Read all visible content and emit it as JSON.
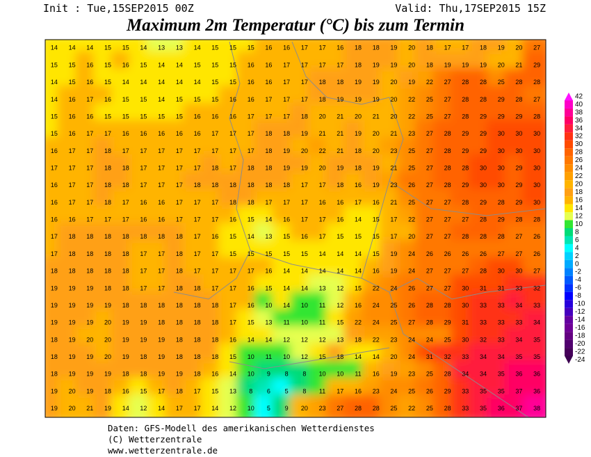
{
  "header": {
    "init": "Init : Tue,15SEP2015 00Z",
    "valid": "Valid: Thu,17SEP2015 15Z",
    "title": "Maximum 2m Temperatur (°C) bis zum Termin"
  },
  "map": {
    "grid": [
      [
        14,
        14,
        14,
        15,
        15,
        14,
        13,
        13,
        14,
        15,
        15,
        15,
        16,
        16,
        17,
        17,
        16,
        18,
        18,
        19,
        20,
        18,
        17,
        17,
        18,
        19,
        20,
        27
      ],
      [
        15,
        15,
        16,
        15,
        16,
        15,
        14,
        14,
        15,
        15,
        15,
        16,
        16,
        17,
        17,
        17,
        17,
        18,
        19,
        19,
        20,
        18,
        19,
        19,
        19,
        20,
        21,
        29
      ],
      [
        14,
        15,
        16,
        15,
        14,
        14,
        14,
        14,
        14,
        15,
        15,
        16,
        16,
        17,
        17,
        18,
        18,
        19,
        19,
        20,
        19,
        22,
        27,
        28,
        28,
        25,
        28,
        28
      ],
      [
        14,
        16,
        17,
        16,
        15,
        15,
        14,
        15,
        15,
        15,
        16,
        16,
        17,
        17,
        17,
        18,
        19,
        19,
        19,
        20,
        22,
        25,
        27,
        28,
        28,
        29,
        28,
        27
      ],
      [
        15,
        16,
        16,
        15,
        15,
        15,
        15,
        15,
        16,
        16,
        16,
        17,
        17,
        17,
        18,
        20,
        21,
        20,
        21,
        20,
        22,
        25,
        27,
        28,
        29,
        29,
        29,
        28
      ],
      [
        15,
        16,
        17,
        17,
        16,
        16,
        16,
        16,
        16,
        17,
        17,
        17,
        18,
        18,
        19,
        21,
        21,
        19,
        20,
        21,
        23,
        27,
        28,
        29,
        29,
        30,
        30,
        30
      ],
      [
        16,
        17,
        17,
        18,
        17,
        17,
        17,
        17,
        17,
        17,
        17,
        17,
        18,
        19,
        20,
        22,
        21,
        18,
        20,
        23,
        25,
        27,
        28,
        29,
        29,
        30,
        30,
        30
      ],
      [
        17,
        17,
        17,
        18,
        18,
        17,
        17,
        17,
        17,
        18,
        17,
        18,
        18,
        19,
        19,
        20,
        19,
        18,
        19,
        21,
        25,
        27,
        28,
        28,
        30,
        30,
        29,
        30
      ],
      [
        16,
        17,
        17,
        18,
        18,
        17,
        17,
        17,
        18,
        18,
        18,
        18,
        18,
        18,
        17,
        17,
        18,
        16,
        19,
        23,
        26,
        27,
        28,
        29,
        30,
        30,
        29,
        30
      ],
      [
        16,
        17,
        17,
        18,
        17,
        16,
        16,
        17,
        17,
        17,
        18,
        18,
        17,
        17,
        17,
        16,
        16,
        17,
        16,
        21,
        25,
        27,
        27,
        28,
        29,
        28,
        29,
        30
      ],
      [
        16,
        16,
        17,
        17,
        17,
        16,
        16,
        17,
        17,
        17,
        16,
        15,
        14,
        16,
        17,
        17,
        16,
        14,
        15,
        17,
        22,
        27,
        27,
        27,
        28,
        29,
        28,
        28
      ],
      [
        17,
        18,
        18,
        18,
        18,
        18,
        18,
        18,
        17,
        16,
        15,
        14,
        13,
        15,
        16,
        17,
        15,
        15,
        15,
        17,
        20,
        27,
        27,
        28,
        28,
        28,
        27,
        26
      ],
      [
        17,
        18,
        18,
        18,
        18,
        17,
        17,
        18,
        17,
        17,
        15,
        15,
        15,
        15,
        15,
        14,
        14,
        14,
        15,
        19,
        24,
        26,
        26,
        26,
        26,
        27,
        27,
        26
      ],
      [
        18,
        18,
        18,
        18,
        18,
        17,
        17,
        18,
        17,
        17,
        17,
        17,
        16,
        14,
        14,
        14,
        14,
        14,
        16,
        19,
        24,
        27,
        27,
        27,
        28,
        30,
        30,
        27
      ],
      [
        19,
        19,
        19,
        18,
        18,
        17,
        17,
        18,
        18,
        17,
        17,
        16,
        15,
        14,
        14,
        13,
        12,
        15,
        22,
        24,
        26,
        27,
        27,
        30,
        31,
        31,
        33,
        32
      ],
      [
        19,
        19,
        19,
        19,
        18,
        18,
        18,
        18,
        18,
        18,
        17,
        16,
        10,
        14,
        10,
        11,
        12,
        16,
        24,
        25,
        26,
        28,
        28,
        30,
        33,
        33,
        34,
        33
      ],
      [
        19,
        19,
        19,
        20,
        19,
        19,
        18,
        18,
        18,
        18,
        17,
        15,
        13,
        11,
        10,
        11,
        15,
        22,
        24,
        25,
        27,
        28,
        29,
        31,
        33,
        33,
        33,
        34
      ],
      [
        18,
        19,
        20,
        20,
        19,
        19,
        19,
        18,
        18,
        18,
        16,
        14,
        14,
        12,
        12,
        12,
        13,
        18,
        22,
        23,
        24,
        24,
        25,
        30,
        32,
        33,
        34,
        35
      ],
      [
        18,
        19,
        19,
        20,
        19,
        18,
        19,
        18,
        18,
        18,
        15,
        10,
        11,
        10,
        12,
        15,
        18,
        14,
        14,
        20,
        24,
        31,
        32,
        33,
        34,
        34,
        35,
        35
      ],
      [
        18,
        19,
        19,
        19,
        18,
        18,
        19,
        19,
        18,
        16,
        14,
        10,
        9,
        8,
        8,
        10,
        10,
        11,
        16,
        19,
        23,
        25,
        28,
        34,
        34,
        35,
        36,
        36
      ],
      [
        19,
        20,
        19,
        18,
        16,
        15,
        17,
        18,
        17,
        15,
        13,
        8,
        6,
        5,
        8,
        11,
        17,
        16,
        23,
        24,
        25,
        26,
        29,
        33,
        35,
        35,
        37,
        36
      ],
      [
        19,
        20,
        21,
        19,
        14,
        12,
        14,
        17,
        17,
        14,
        12,
        10,
        5,
        9,
        20,
        23,
        27,
        28,
        28,
        25,
        22,
        25,
        28,
        33,
        35,
        36,
        37,
        38
      ]
    ]
  },
  "legend": {
    "levels": [
      {
        "value": 42,
        "color": "#ff10ff"
      },
      {
        "value": 40,
        "color": "#ff00c8"
      },
      {
        "value": 38,
        "color": "#ff0096"
      },
      {
        "value": 36,
        "color": "#ff0064"
      },
      {
        "value": 34,
        "color": "#ff1e3c"
      },
      {
        "value": 32,
        "color": "#ff3214"
      },
      {
        "value": 30,
        "color": "#ff4b00"
      },
      {
        "value": 28,
        "color": "#ff6400"
      },
      {
        "value": 26,
        "color": "#ff7800"
      },
      {
        "value": 24,
        "color": "#ff8c00"
      },
      {
        "value": 22,
        "color": "#ffa000"
      },
      {
        "value": 20,
        "color": "#ffb400"
      },
      {
        "value": 18,
        "color": "#ffa014"
      },
      {
        "value": 16,
        "color": "#ffb400"
      },
      {
        "value": 14,
        "color": "#ffe600"
      },
      {
        "value": 12,
        "color": "#e6ff50"
      },
      {
        "value": 10,
        "color": "#32e632"
      },
      {
        "value": 8,
        "color": "#00dc78"
      },
      {
        "value": 6,
        "color": "#00e6b4"
      },
      {
        "value": 4,
        "color": "#00ffff"
      },
      {
        "value": 2,
        "color": "#00d2ff"
      },
      {
        "value": 0,
        "color": "#00aaff"
      },
      {
        "value": -2,
        "color": "#0082ff"
      },
      {
        "value": -4,
        "color": "#005aff"
      },
      {
        "value": -6,
        "color": "#0032ff"
      },
      {
        "value": -8,
        "color": "#0000ff"
      },
      {
        "value": -10,
        "color": "#2800dc"
      },
      {
        "value": -12,
        "color": "#4600be"
      },
      {
        "value": -14,
        "color": "#6400a0"
      },
      {
        "value": -16,
        "color": "#6e0096"
      },
      {
        "value": -18,
        "color": "#640082"
      },
      {
        "value": -20,
        "color": "#50006e"
      },
      {
        "value": -22,
        "color": "#46005a"
      },
      {
        "value": -24,
        "color": "#3c0050"
      }
    ]
  },
  "footer": {
    "lines": [
      "Daten: GFS-Modell des amerikanischen Wetterdienstes",
      "(C) Wetterzentrale",
      "www.wetterzentrale.de"
    ]
  }
}
